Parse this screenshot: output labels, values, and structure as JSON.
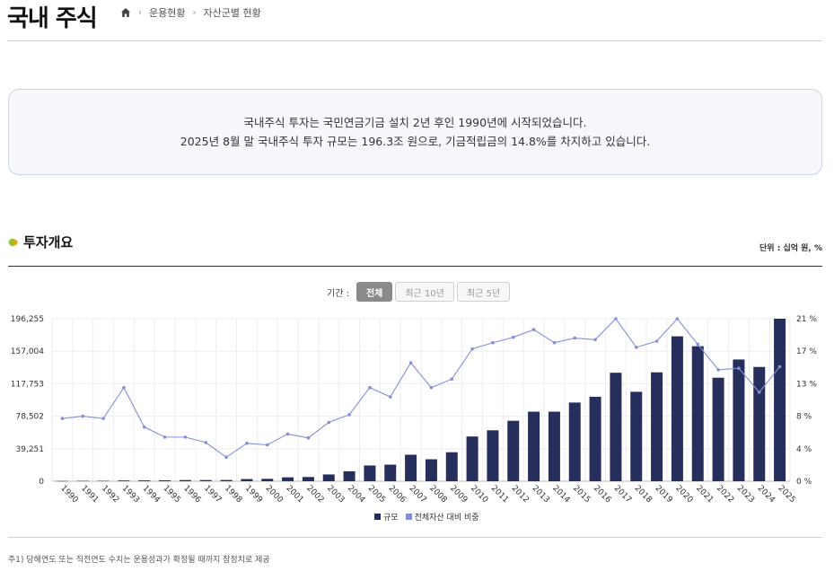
{
  "header": {
    "title": "국내 주식",
    "breadcrumb": [
      "운용현황",
      "자산군별 현황"
    ]
  },
  "intro": {
    "line1": "국내주식 투자는 국민연금기금 설치 2년 후인 1990년에 시작되었습니다.",
    "line2": "2025년 8월 말 국내주식 투자 규모는 196.3조 원으로, 기금적립금의 14.8%를 차지하고 있습니다."
  },
  "section": {
    "title": "투자개요",
    "unit": "단위 : 십억 원, %"
  },
  "period": {
    "label": "기간 :",
    "buttons": [
      "전체",
      "최근 10년",
      "최근 5년"
    ],
    "selected": "전체"
  },
  "chart_data": {
    "type": "bar",
    "categories": [
      "1990",
      "1991",
      "1992",
      "1993",
      "1994",
      "1995",
      "1996",
      "1997",
      "1998",
      "1999",
      "2000",
      "2001",
      "2002",
      "2003",
      "2004",
      "2005",
      "2006",
      "2007",
      "2008",
      "2009",
      "2010",
      "2011",
      "2012",
      "2013",
      "2014",
      "2015",
      "2016",
      "2017",
      "2018",
      "2019",
      "2020",
      "2021",
      "2022",
      "2023",
      "2024",
      "2025"
    ],
    "series": [
      {
        "name": "규모",
        "type": "bar",
        "axis": "left",
        "color": "#262f5c",
        "values": [
          300,
          450,
          500,
          900,
          1000,
          1100,
          1400,
          1400,
          1500,
          2600,
          2900,
          4700,
          5100,
          8200,
          12000,
          19000,
          20000,
          32000,
          26500,
          35000,
          54000,
          61500,
          73000,
          84000,
          84000,
          95000,
          102000,
          131000,
          108000,
          131500,
          175000,
          163000,
          125000,
          147000,
          138000,
          196255
        ]
      },
      {
        "name": "전체자산 대비 비중",
        "type": "line",
        "axis": "right",
        "color": "#8590d4",
        "values": [
          8.1,
          8.4,
          8.1,
          12.1,
          7.0,
          5.7,
          5.7,
          5.0,
          3.1,
          4.9,
          4.7,
          6.1,
          5.6,
          7.6,
          8.6,
          12.1,
          10.9,
          15.3,
          12.1,
          13.2,
          17.1,
          17.9,
          18.6,
          19.6,
          17.9,
          18.5,
          18.3,
          21.0,
          17.3,
          18.1,
          21.0,
          17.7,
          14.4,
          14.6,
          11.5,
          14.8
        ]
      }
    ],
    "y_left": {
      "ticks": [
        "0",
        "39,251",
        "78,502",
        "117,753",
        "157,004",
        "196,255"
      ],
      "max": 196255
    },
    "y_right": {
      "ticks": [
        "0 %",
        "4 %",
        "8 %",
        "13 %",
        "17 %",
        "21 %"
      ],
      "max": 21
    },
    "legend": [
      "규모",
      "전체자산 대비 비중"
    ],
    "legend_position": "bottom",
    "grid": true
  },
  "footnote": "주1) 당해연도 또는 직전연도 수치는 운용성과가 확정될 때까지 잠정치로 제공"
}
